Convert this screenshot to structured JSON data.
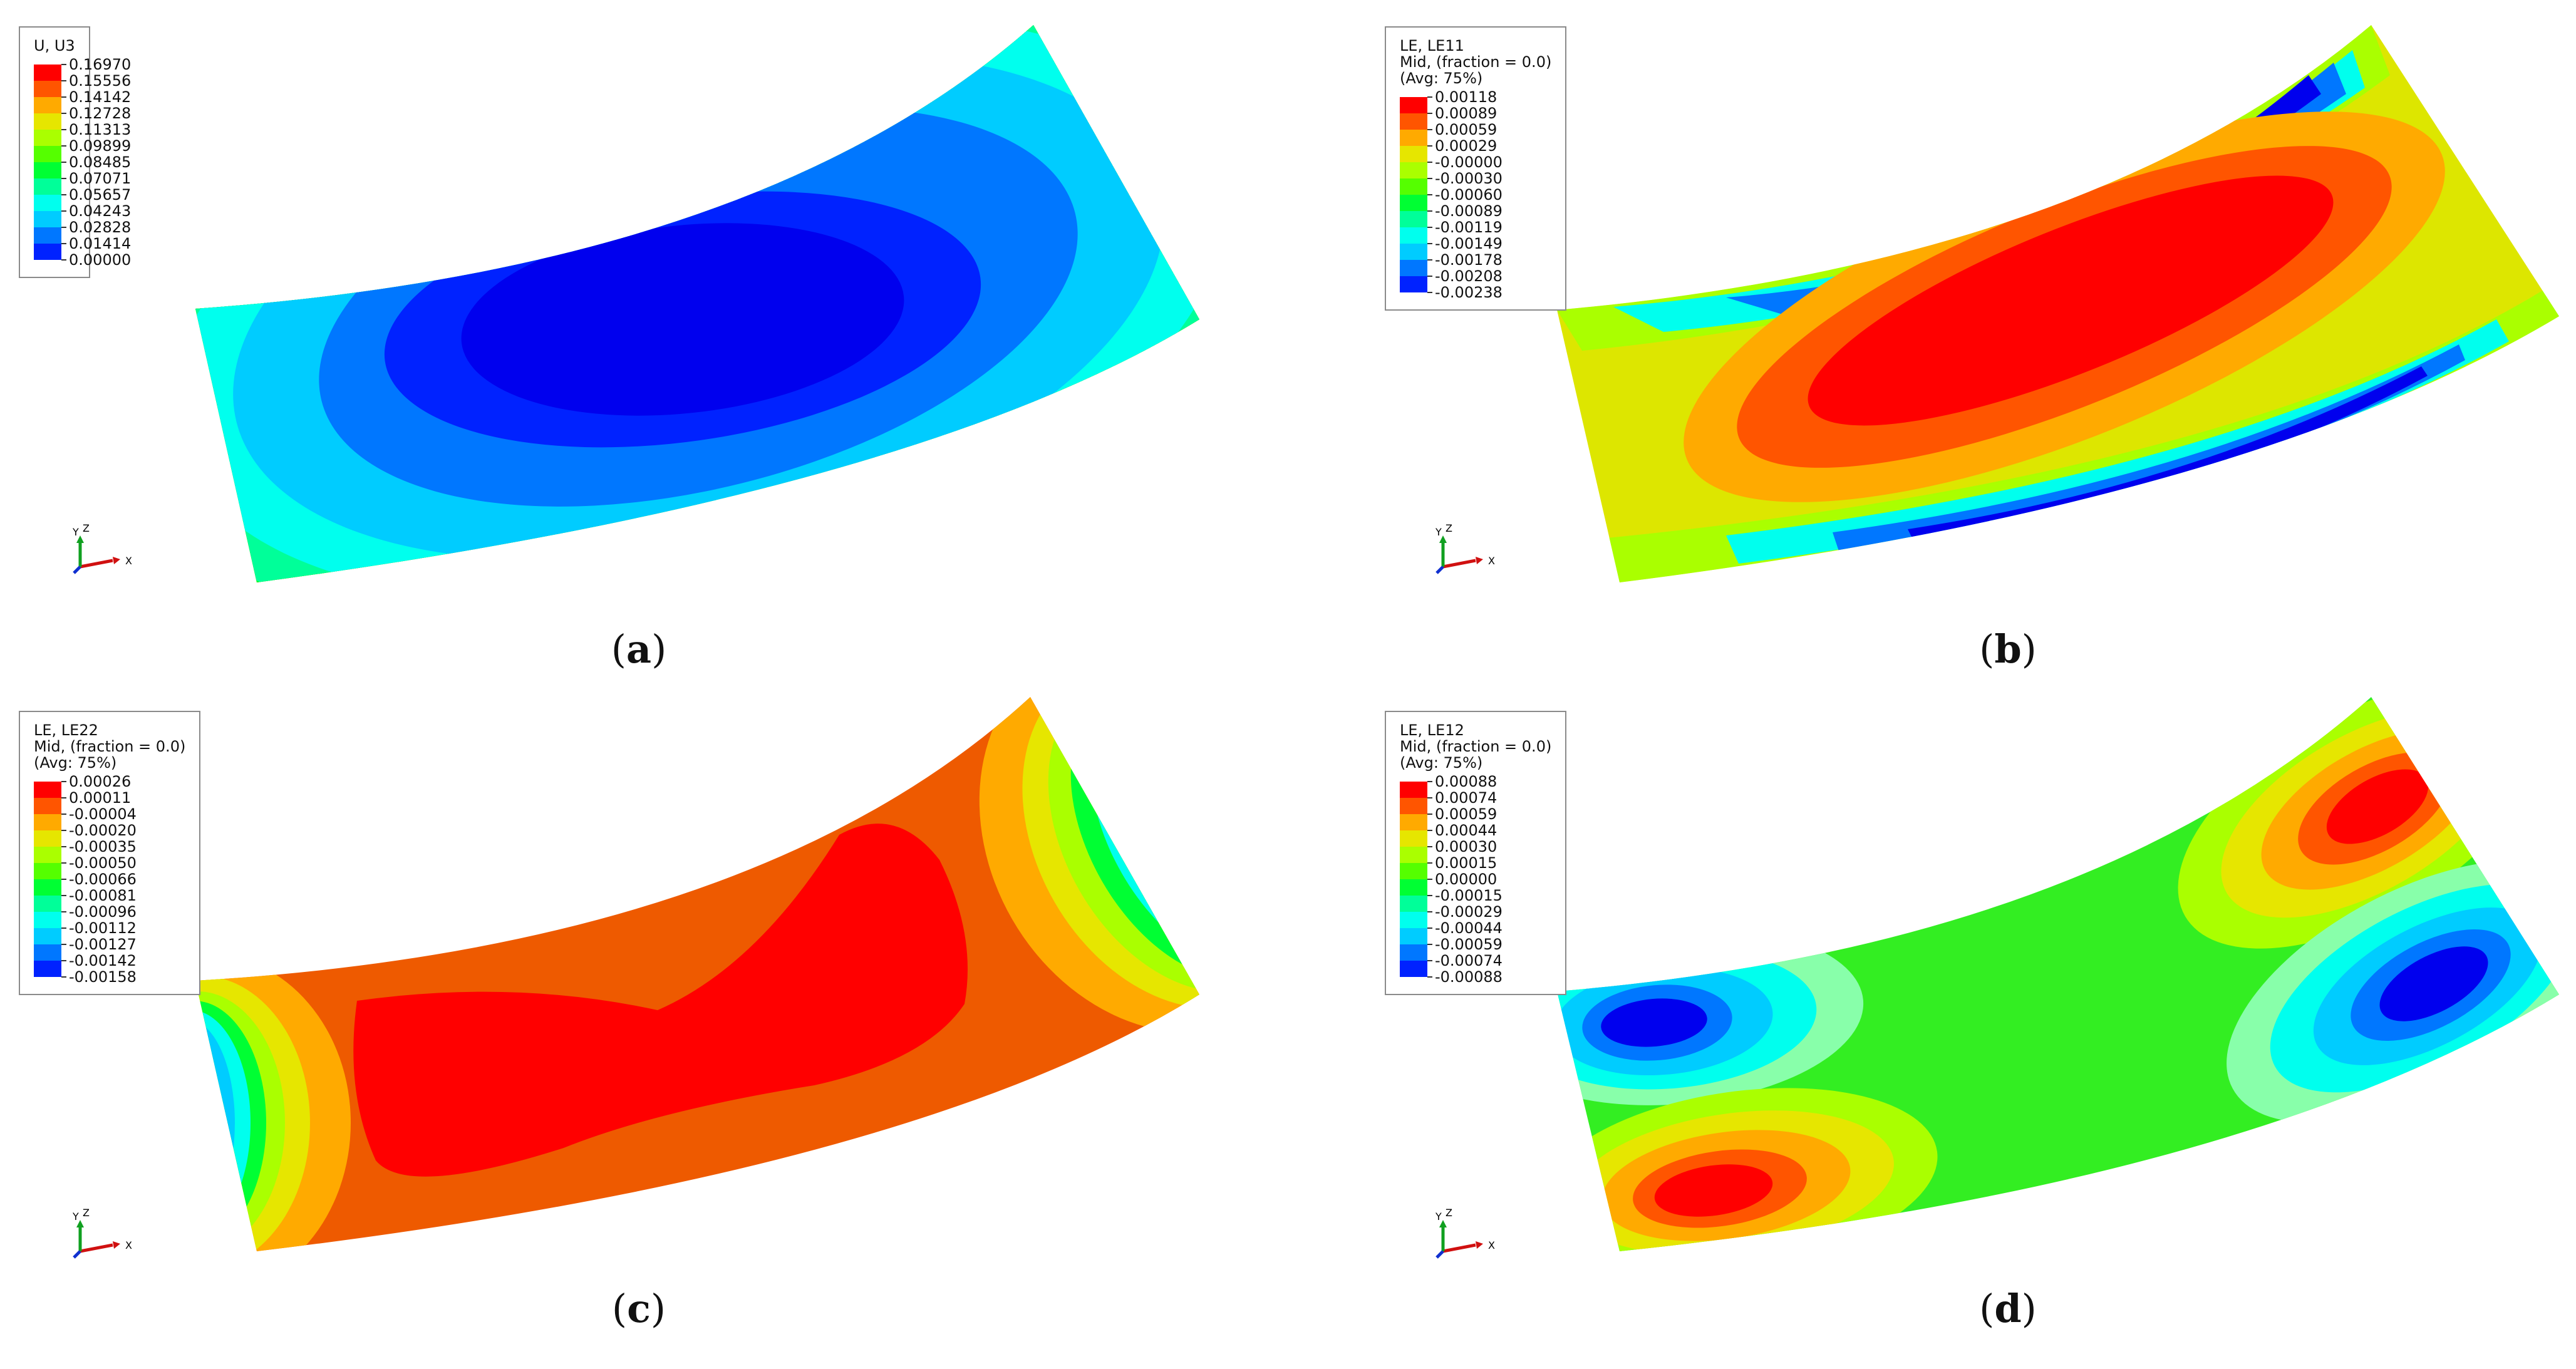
{
  "panels": [
    {
      "caption": "a",
      "legend": {
        "lines": [
          "U, U3"
        ],
        "values": [
          "0.16970",
          "0.15556",
          "0.14142",
          "0.12728",
          "0.11313",
          "0.09899",
          "0.08485",
          "0.07071",
          "0.05657",
          "0.04243",
          "0.02828",
          "0.01414",
          "0.00000"
        ]
      }
    },
    {
      "caption": "b",
      "legend": {
        "lines": [
          "LE, LE11",
          "Mid, (fraction = 0.0)",
          "(Avg: 75%)"
        ],
        "values": [
          "0.00118",
          "0.00089",
          "0.00059",
          "0.00029",
          "-0.00000",
          "-0.00030",
          "-0.00060",
          "-0.00089",
          "-0.00119",
          "-0.00149",
          "-0.00178",
          "-0.00208",
          "-0.00238"
        ]
      }
    },
    {
      "caption": "c",
      "legend": {
        "lines": [
          "LE, LE22",
          "Mid, (fraction = 0.0)",
          "(Avg: 75%)"
        ],
        "values": [
          "0.00026",
          "0.00011",
          "-0.00004",
          "-0.00020",
          "-0.00035",
          "-0.00050",
          "-0.00066",
          "-0.00081",
          "-0.00096",
          "-0.00112",
          "-0.00127",
          "-0.00142",
          "-0.00158"
        ]
      }
    },
    {
      "caption": "d",
      "legend": {
        "lines": [
          "LE, LE12",
          "Mid, (fraction = 0.0)",
          "(Avg: 75%)"
        ],
        "values": [
          "0.00088",
          "0.00074",
          "0.00059",
          "0.00044",
          "0.00030",
          "0.00015",
          "0.00000",
          "-0.00015",
          "-0.00029",
          "-0.00044",
          "-0.00059",
          "-0.00074",
          "-0.00088"
        ]
      }
    }
  ],
  "triad": {
    "y": "Y",
    "z": "Z",
    "x": "X"
  },
  "colormap": [
    "#ff0000",
    "#ff5500",
    "#ffaa00",
    "#e6e600",
    "#aaff00",
    "#55ff00",
    "#00ff33",
    "#00ff99",
    "#00ffee",
    "#00ccff",
    "#0077ff",
    "#0022ff",
    "#0000ee"
  ]
}
